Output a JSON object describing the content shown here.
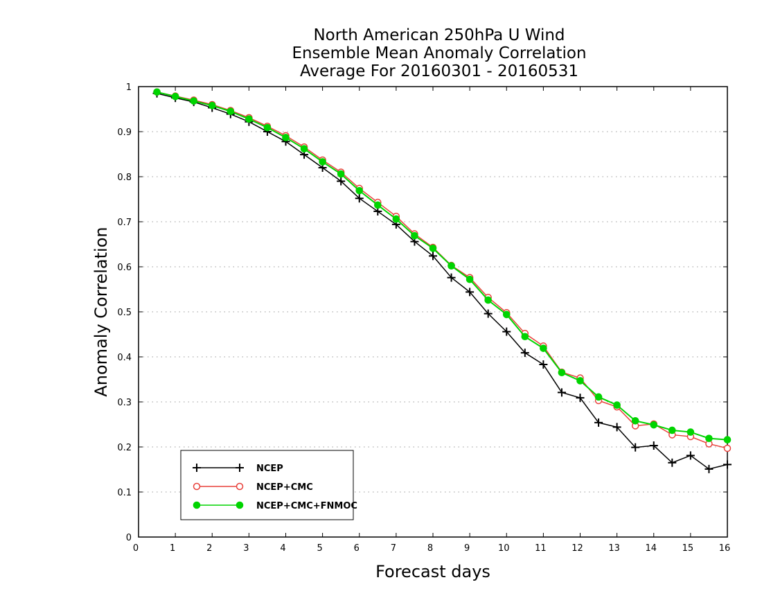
{
  "chart_data": {
    "type": "line",
    "title_lines": [
      "North American 250hPa U Wind",
      "Ensemble Mean Anomaly Correlation",
      "Average For 20160301 - 20160531"
    ],
    "xlabel": "Forecast days",
    "ylabel": "Anomaly Correlation",
    "xlim": [
      0,
      16
    ],
    "ylim": [
      0,
      1
    ],
    "xticks": [
      "0",
      "1",
      "2",
      "3",
      "4",
      "5",
      "6",
      "7",
      "8",
      "9",
      "10",
      "11",
      "12",
      "13",
      "14",
      "15",
      "16"
    ],
    "yticks": [
      "0",
      "0.1",
      "0.2",
      "0.3",
      "0.4",
      "0.5",
      "0.6",
      "0.7",
      "0.8",
      "0.9",
      "1"
    ],
    "grid": true,
    "legend_position": "bottom-left",
    "x": [
      0.5,
      1,
      1.5,
      2,
      2.5,
      3,
      3.5,
      4,
      4.5,
      5,
      5.5,
      6,
      6.5,
      7,
      7.5,
      8,
      8.5,
      9,
      9.5,
      10,
      10.5,
      11,
      11.5,
      12,
      12.5,
      13,
      13.5,
      14,
      14.5,
      15,
      15.5,
      16
    ],
    "series": [
      {
        "name": "NCEP",
        "color": "#000000",
        "marker": "plus",
        "values": [
          0.985,
          0.975,
          0.966,
          0.953,
          0.939,
          0.922,
          0.9,
          0.878,
          0.849,
          0.82,
          0.79,
          0.752,
          0.723,
          0.694,
          0.656,
          0.624,
          0.576,
          0.544,
          0.496,
          0.456,
          0.409,
          0.383,
          0.321,
          0.309,
          0.254,
          0.244,
          0.199,
          0.203,
          0.165,
          0.181,
          0.151,
          0.161
        ]
      },
      {
        "name": "NCEP+CMC",
        "color": "#e8403a",
        "marker": "open-circle",
        "values": [
          0.988,
          0.979,
          0.97,
          0.96,
          0.947,
          0.931,
          0.912,
          0.891,
          0.866,
          0.837,
          0.81,
          0.774,
          0.743,
          0.712,
          0.673,
          0.643,
          0.603,
          0.576,
          0.532,
          0.498,
          0.452,
          0.424,
          0.366,
          0.353,
          0.303,
          0.289,
          0.247,
          0.251,
          0.227,
          0.223,
          0.207,
          0.197
        ]
      },
      {
        "name": "NCEP+CMC+FNMOC",
        "color": "#00d400",
        "marker": "filled-circle",
        "values": [
          0.988,
          0.978,
          0.968,
          0.958,
          0.945,
          0.928,
          0.909,
          0.887,
          0.862,
          0.833,
          0.806,
          0.769,
          0.737,
          0.706,
          0.669,
          0.641,
          0.602,
          0.572,
          0.526,
          0.494,
          0.445,
          0.419,
          0.365,
          0.347,
          0.311,
          0.293,
          0.258,
          0.249,
          0.237,
          0.233,
          0.219,
          0.216
        ]
      }
    ]
  }
}
